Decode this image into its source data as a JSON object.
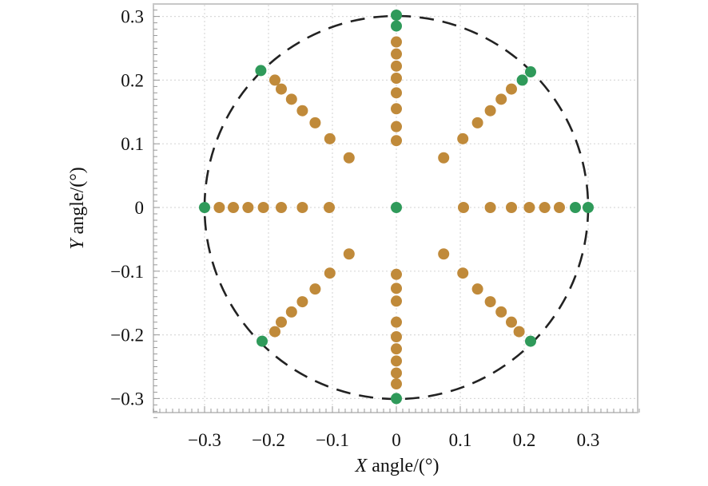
{
  "chart_data": {
    "type": "scatter",
    "title": "",
    "xlabel": {
      "var": "X",
      "rest": " angle/(°)"
    },
    "ylabel": {
      "var": "Y",
      "rest": " angle/(°)"
    },
    "xlim": [
      -0.38,
      0.38
    ],
    "ylim": [
      -0.33,
      0.31
    ],
    "grid": true,
    "legend": "none",
    "xticks": [
      {
        "v": -0.3,
        "label": "−0.3"
      },
      {
        "v": -0.2,
        "label": "−0.2"
      },
      {
        "v": -0.1,
        "label": "−0.1"
      },
      {
        "v": 0,
        "label": "0"
      },
      {
        "v": 0.1,
        "label": "0.1"
      },
      {
        "v": 0.2,
        "label": "0.2"
      },
      {
        "v": 0.3,
        "label": "0.3"
      }
    ],
    "yticks": [
      {
        "v": 0.3,
        "label": "0.3"
      },
      {
        "v": 0.2,
        "label": "0.2"
      },
      {
        "v": 0.1,
        "label": "0.1"
      },
      {
        "v": 0,
        "label": "0"
      },
      {
        "v": -0.1,
        "label": "−0.1"
      },
      {
        "v": -0.2,
        "label": "−0.2"
      },
      {
        "v": -0.3,
        "label": "−0.3"
      }
    ],
    "circle": {
      "cx": 0,
      "cy": 0,
      "r": 0.3,
      "style": "dashed",
      "color": "#222222"
    },
    "radial_distances": [
      0.105,
      0.147,
      0.18,
      0.208,
      0.232,
      0.255,
      0.277,
      0.3
    ],
    "diag_radial_distances": [
      0.105,
      0.147,
      0.18,
      0.208,
      0.232,
      0.255,
      0.277,
      0.3
    ],
    "angles_deg": [
      0,
      45,
      90,
      135,
      180,
      225,
      270,
      315
    ],
    "series": [
      {
        "color": "#c08a3a",
        "points": [
          [
            0.105,
            0
          ],
          [
            0.147,
            0
          ],
          [
            0.18,
            0
          ],
          [
            0.208,
            0
          ],
          [
            0.232,
            0
          ],
          [
            0.255,
            0
          ],
          [
            -0.105,
            0
          ],
          [
            -0.147,
            0
          ],
          [
            -0.18,
            0
          ],
          [
            -0.208,
            0
          ],
          [
            -0.232,
            0
          ],
          [
            -0.255,
            0
          ],
          [
            -0.277,
            0
          ],
          [
            0,
            0.105
          ],
          [
            0,
            0.127
          ],
          [
            0,
            0.155
          ],
          [
            0,
            0.18
          ],
          [
            0,
            0.203
          ],
          [
            0,
            0.222
          ],
          [
            0,
            0.241
          ],
          [
            0,
            0.26
          ],
          [
            0,
            -0.105
          ],
          [
            0,
            -0.127
          ],
          [
            0,
            -0.147
          ],
          [
            0,
            -0.18
          ],
          [
            0,
            -0.203
          ],
          [
            0,
            -0.222
          ],
          [
            0,
            -0.241
          ],
          [
            0,
            -0.26
          ],
          [
            0,
            -0.277
          ],
          [
            0.074,
            0.078
          ],
          [
            0.104,
            0.108
          ],
          [
            0.127,
            0.133
          ],
          [
            0.147,
            0.152
          ],
          [
            0.164,
            0.17
          ],
          [
            0.18,
            0.186
          ],
          [
            -0.074,
            0.078
          ],
          [
            -0.104,
            0.108
          ],
          [
            -0.127,
            0.133
          ],
          [
            -0.147,
            0.152
          ],
          [
            -0.164,
            0.17
          ],
          [
            -0.18,
            0.186
          ],
          [
            -0.19,
            0.2
          ],
          [
            0.074,
            -0.073
          ],
          [
            0.104,
            -0.103
          ],
          [
            0.127,
            -0.128
          ],
          [
            0.147,
            -0.148
          ],
          [
            0.164,
            -0.164
          ],
          [
            0.18,
            -0.18
          ],
          [
            0.192,
            -0.195
          ],
          [
            -0.074,
            -0.073
          ],
          [
            -0.104,
            -0.103
          ],
          [
            -0.127,
            -0.128
          ],
          [
            -0.147,
            -0.148
          ],
          [
            -0.164,
            -0.164
          ],
          [
            -0.18,
            -0.18
          ],
          [
            -0.19,
            -0.195
          ]
        ]
      },
      {
        "color": "#2f9a5a",
        "points": [
          [
            0,
            0
          ],
          [
            0.3,
            0
          ],
          [
            0.28,
            0
          ],
          [
            -0.3,
            0
          ],
          [
            0,
            0.302
          ],
          [
            0,
            0.285
          ],
          [
            0,
            -0.3
          ],
          [
            0.21,
            0.213
          ],
          [
            0.197,
            0.2
          ],
          [
            -0.212,
            0.215
          ],
          [
            0.21,
            -0.21
          ],
          [
            -0.21,
            -0.21
          ]
        ]
      }
    ]
  }
}
